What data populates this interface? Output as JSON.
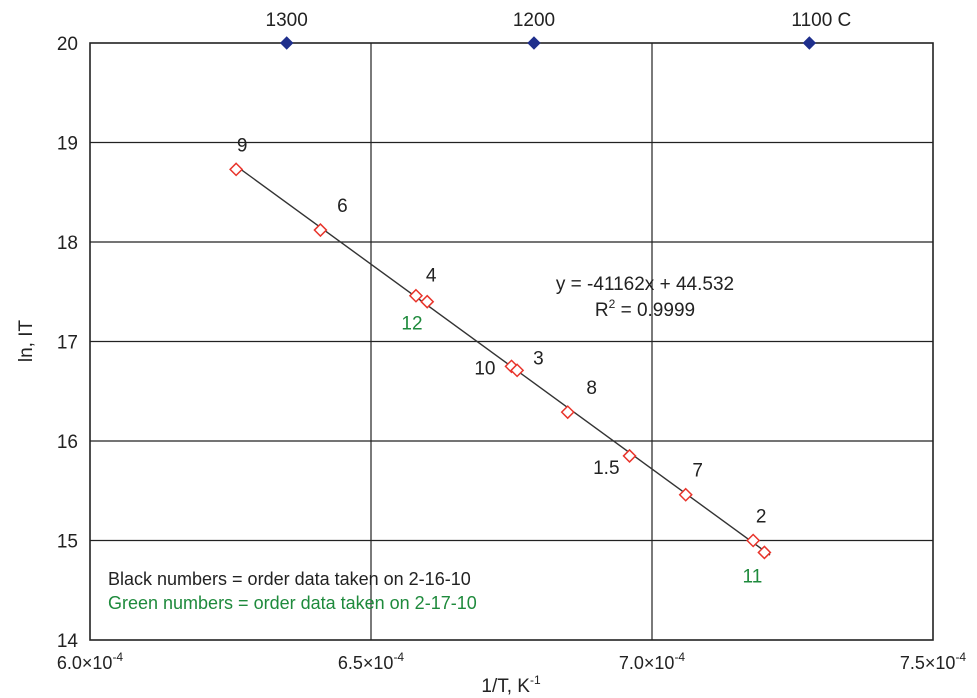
{
  "chart_data": {
    "type": "scatter",
    "xlabel": "1/T, K",
    "xlabel_sup": "-1",
    "ylabel": "ln, IT",
    "xlim": [
      0.0006,
      0.00075
    ],
    "ylim": [
      14,
      20
    ],
    "x_ticks": [
      {
        "value": 0.0006,
        "mantissa": "6.0×10",
        "exp": "-4"
      },
      {
        "value": 0.00065,
        "mantissa": "6.5×10",
        "exp": "-4"
      },
      {
        "value": 0.0007,
        "mantissa": "7.0×10",
        "exp": "-4"
      },
      {
        "value": 0.00075,
        "mantissa": "7.5×10",
        "exp": "-4"
      }
    ],
    "y_ticks": [
      14,
      15,
      16,
      17,
      18,
      19,
      20
    ],
    "grid": true,
    "top_axis": {
      "marker_color": "#1f2f8c",
      "ticks": [
        {
          "x": 0.000635,
          "label": "1300"
        },
        {
          "x": 0.000679,
          "label": "1200"
        },
        {
          "x": 0.000728,
          "label": "1100 C"
        }
      ]
    },
    "series": [
      {
        "marker": "diamond-open",
        "color": "#e8342b",
        "points": [
          {
            "label": "9",
            "label_color": "#222222",
            "x": 0.000626,
            "y": 18.73
          },
          {
            "label": "6",
            "label_color": "#222222",
            "x": 0.000641,
            "y": 18.12
          },
          {
            "label": "12",
            "label_color": "#1e8a3c",
            "x": 0.000658,
            "y": 17.46
          },
          {
            "label": "4",
            "label_color": "#222222",
            "x": 0.00066,
            "y": 17.4
          },
          {
            "label": "10",
            "label_color": "#222222",
            "x": 0.000675,
            "y": 16.75
          },
          {
            "label": "3",
            "label_color": "#222222",
            "x": 0.000676,
            "y": 16.71
          },
          {
            "label": "8",
            "label_color": "#222222",
            "x": 0.000685,
            "y": 16.29
          },
          {
            "label": "1.5",
            "label_color": "#222222",
            "x": 0.000696,
            "y": 15.85
          },
          {
            "label": "7",
            "label_color": "#222222",
            "x": 0.000706,
            "y": 15.46
          },
          {
            "label": "2",
            "label_color": "#222222",
            "x": 0.000718,
            "y": 15.0
          },
          {
            "label": "11",
            "label_color": "#1e8a3c",
            "x": 0.00072,
            "y": 14.88
          }
        ]
      }
    ],
    "trendline": {
      "color": "#333333",
      "slope": -41162,
      "intercept": 44.532,
      "x_range": [
        0.000626,
        0.000721
      ],
      "equation": "y = -41162x + 44.532",
      "r2_prefix": "R",
      "r2_sup": "2",
      "r2_value": " = 0.9999"
    },
    "notes": [
      {
        "text": "Black numbers = order data taken on 2-16-10",
        "color": "#222222"
      },
      {
        "text": "Green numbers = order data taken on 2-17-10",
        "color": "#1e8a3c"
      }
    ]
  }
}
